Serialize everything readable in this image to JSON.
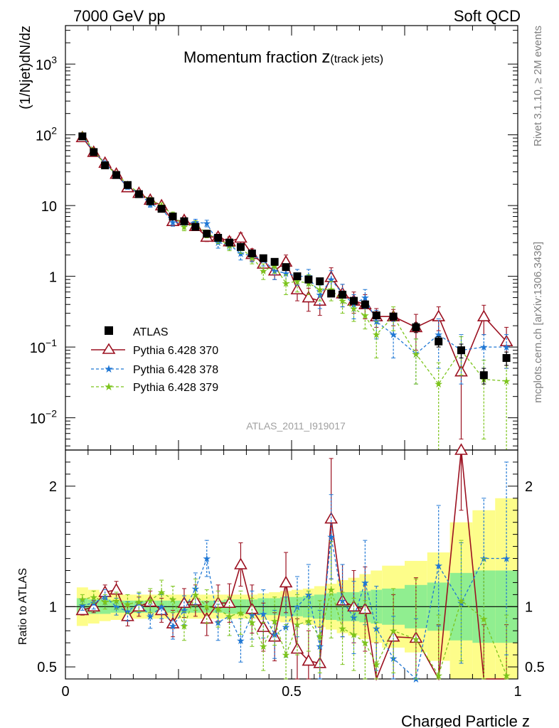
{
  "header": {
    "left": "7000 GeV pp",
    "right": "Soft QCD"
  },
  "side_labels": {
    "top": "Rivet 3.1.10, ≥ 2M events",
    "bottom": "mcplots.cern.ch [arXiv:1306.3436]"
  },
  "analysis_tag": "ATLAS_2011_I919017",
  "colors": {
    "data": "#000000",
    "p370": "#9b1020",
    "p378": "#1f77d4",
    "p379": "#7cc41c",
    "band_inner": "#90ee90",
    "band_outer": "#fdfd8a"
  },
  "chart_data": [
    {
      "type": "scatter",
      "panel": "main",
      "title_main": "Momentum fraction ",
      "title_z": "z",
      "title_sub": "(track jets)",
      "ylabel": "(1/Njet)dN/dz",
      "xlim": [
        0,
        1
      ],
      "ylim": [
        0.0035,
        3500
      ],
      "log_y": true,
      "y_ticks": [
        {
          "v": 0.01,
          "base": "10",
          "exp": "−2"
        },
        {
          "v": 0.1,
          "base": "10",
          "exp": "−1"
        },
        {
          "v": 1,
          "base": "1",
          "exp": ""
        },
        {
          "v": 10,
          "base": "10",
          "exp": ""
        },
        {
          "v": 100,
          "base": "10",
          "exp": "2"
        },
        {
          "v": 1000,
          "base": "10",
          "exp": "3"
        }
      ],
      "legend_position": "lower-left",
      "x": [
        0.0375,
        0.0625,
        0.0875,
        0.1125,
        0.1375,
        0.1625,
        0.1875,
        0.2125,
        0.2375,
        0.2625,
        0.2875,
        0.3125,
        0.3375,
        0.3625,
        0.3875,
        0.4125,
        0.4375,
        0.4625,
        0.4875,
        0.5125,
        0.5375,
        0.5625,
        0.5875,
        0.6125,
        0.6375,
        0.6625,
        0.6875,
        0.725,
        0.775,
        0.825,
        0.875,
        0.925,
        0.975
      ],
      "series": [
        {
          "name": "ATLAS",
          "key": "data",
          "marker": "square",
          "line": "none",
          "values": [
            95,
            57,
            37,
            27,
            19.5,
            14.5,
            11.5,
            9,
            7,
            6,
            5,
            4,
            3.5,
            3,
            2.6,
            2.1,
            1.8,
            1.6,
            1.35,
            1.0,
            0.9,
            0.85,
            0.57,
            0.55,
            0.45,
            0.4,
            0.28,
            0.27,
            0.19,
            0.12,
            0.09,
            0.04,
            0.07
          ],
          "errors": [
            5,
            3,
            2,
            1.5,
            1,
            0.8,
            0.6,
            0.5,
            0.4,
            0.35,
            0.3,
            0.25,
            0.2,
            0.18,
            0.16,
            0.13,
            0.12,
            0.11,
            0.1,
            0.08,
            0.07,
            0.07,
            0.05,
            0.05,
            0.04,
            0.04,
            0.03,
            0.03,
            0.03,
            0.02,
            0.02,
            0.01,
            0.015
          ]
        },
        {
          "name": "Pythia 6.428 370",
          "key": "p370",
          "marker": "triangle-open",
          "line": "solid",
          "values": [
            92,
            57,
            40,
            28,
            18,
            15,
            12,
            10,
            6,
            6.2,
            5.1,
            3.6,
            3.6,
            3.1,
            3.5,
            2.05,
            1.5,
            1.2,
            1.6,
            0.65,
            0.5,
            0.45,
            0.97,
            0.57,
            0.45,
            0.4,
            0.27,
            0.27,
            0.19,
            0.27,
            0.045,
            0.27,
            0.12
          ],
          "errors": [
            4,
            3,
            2,
            1.5,
            1.5,
            1.2,
            1,
            0.9,
            0.7,
            0.7,
            0.6,
            0.5,
            0.5,
            0.5,
            0.6,
            0.4,
            0.35,
            0.3,
            0.4,
            0.2,
            0.18,
            0.17,
            0.35,
            0.2,
            0.15,
            0.15,
            0.08,
            0.07,
            0.1,
            0.1,
            0.04,
            0.12,
            0.07
          ]
        },
        {
          "name": "Pythia 6.428 378",
          "key": "p378",
          "marker": "star",
          "line": "dashed",
          "values": [
            96,
            58,
            40,
            27,
            18.5,
            15,
            10.5,
            9,
            5.8,
            5.7,
            5.8,
            5.6,
            3.0,
            2.8,
            2.1,
            1.95,
            1.7,
            1.2,
            1.1,
            1.0,
            1.0,
            0.55,
            0.9,
            0.57,
            0.4,
            0.5,
            0.23,
            0.15,
            0.08,
            0.15,
            0.09,
            0.1,
            0.1
          ],
          "errors": [
            4,
            3,
            2,
            1.5,
            1.5,
            1.2,
            1,
            0.9,
            0.7,
            0.7,
            0.6,
            0.6,
            0.5,
            0.4,
            0.4,
            0.35,
            0.3,
            0.3,
            0.3,
            0.25,
            0.25,
            0.2,
            0.3,
            0.2,
            0.15,
            0.15,
            0.1,
            0.08,
            0.05,
            0.1,
            0.06,
            0.05,
            0.05
          ]
        },
        {
          "name": "Pythia 6.428 379",
          "key": "p379",
          "marker": "star",
          "line": "dashed",
          "values": [
            102,
            60,
            38,
            28,
            20,
            15,
            12,
            10,
            7.4,
            5,
            5.5,
            4,
            3.4,
            2.7,
            2.5,
            1.85,
            1.2,
            1.4,
            0.8,
            0.85,
            0.8,
            0.65,
            0.65,
            0.45,
            0.35,
            0.28,
            0.15,
            0.27,
            0.08,
            0.03,
            0.09,
            0.035,
            0.033
          ],
          "errors": [
            4,
            3,
            2,
            1.5,
            1.5,
            1.2,
            1,
            0.9,
            0.7,
            0.6,
            0.6,
            0.5,
            0.5,
            0.4,
            0.4,
            0.35,
            0.3,
            0.3,
            0.25,
            0.25,
            0.25,
            0.2,
            0.2,
            0.15,
            0.12,
            0.1,
            0.08,
            0.1,
            0.05,
            0.03,
            0.05,
            0.03,
            0.03
          ]
        }
      ]
    },
    {
      "type": "scatter",
      "panel": "ratio",
      "ylabel": "Ratio to ATLAS",
      "xlabel": "Charged Particle z",
      "xlim": [
        0,
        1
      ],
      "ylim": [
        0.4,
        2.3
      ],
      "x_ticks": [
        {
          "v": 0,
          "label": "0"
        },
        {
          "v": 0.5,
          "label": "0.5"
        },
        {
          "v": 1,
          "label": "1"
        }
      ],
      "y_ticks": [
        {
          "v": 0.5,
          "label": "0.5"
        },
        {
          "v": 1,
          "label": "1"
        },
        {
          "v": 2,
          "label": "2"
        }
      ],
      "x": [
        0.0375,
        0.0625,
        0.0875,
        0.1125,
        0.1375,
        0.1625,
        0.1875,
        0.2125,
        0.2375,
        0.2625,
        0.2875,
        0.3125,
        0.3375,
        0.3625,
        0.3875,
        0.4125,
        0.4375,
        0.4625,
        0.4875,
        0.5125,
        0.5375,
        0.5625,
        0.5875,
        0.6125,
        0.6375,
        0.6625,
        0.6875,
        0.725,
        0.775,
        0.825,
        0.875,
        0.925,
        0.975
      ],
      "bin_edges": [
        0.025,
        0.05,
        0.075,
        0.1,
        0.125,
        0.15,
        0.175,
        0.2,
        0.225,
        0.25,
        0.275,
        0.3,
        0.325,
        0.35,
        0.375,
        0.4,
        0.425,
        0.45,
        0.475,
        0.5,
        0.525,
        0.55,
        0.575,
        0.6,
        0.625,
        0.65,
        0.675,
        0.7,
        0.75,
        0.8,
        0.85,
        0.9,
        0.95,
        1.0
      ],
      "band_inner": [
        0.07,
        0.06,
        0.06,
        0.05,
        0.05,
        0.05,
        0.05,
        0.05,
        0.05,
        0.05,
        0.05,
        0.05,
        0.05,
        0.06,
        0.06,
        0.06,
        0.07,
        0.07,
        0.08,
        0.08,
        0.09,
        0.1,
        0.11,
        0.12,
        0.12,
        0.13,
        0.14,
        0.15,
        0.18,
        0.2,
        0.28,
        0.3,
        0.3
      ],
      "band_outer": [
        0.16,
        0.14,
        0.12,
        0.11,
        0.1,
        0.1,
        0.1,
        0.1,
        0.1,
        0.1,
        0.1,
        0.1,
        0.1,
        0.1,
        0.1,
        0.1,
        0.11,
        0.12,
        0.13,
        0.14,
        0.15,
        0.17,
        0.19,
        0.22,
        0.24,
        0.27,
        0.3,
        0.34,
        0.38,
        0.45,
        0.7,
        0.8,
        0.9
      ],
      "series": [
        {
          "name": "Pythia 6.428 370",
          "key": "p370",
          "marker": "triangle-open",
          "line": "solid",
          "values": [
            0.97,
            1.0,
            1.12,
            1.14,
            0.92,
            1.0,
            1.04,
            0.97,
            0.86,
            1.03,
            1.05,
            0.9,
            1.03,
            1.03,
            1.35,
            0.98,
            0.83,
            0.75,
            1.2,
            0.65,
            0.55,
            0.53,
            1.73,
            1.05,
            1.0,
            0.98,
            0.35,
            0.75,
            0.74,
            0.35,
            2.3,
            0.35,
            0.35
          ],
          "errors": [
            0.04,
            0.05,
            0.06,
            0.07,
            0.08,
            0.08,
            0.09,
            0.1,
            0.11,
            0.12,
            0.13,
            0.14,
            0.15,
            0.16,
            0.18,
            0.2,
            0.2,
            0.2,
            0.25,
            0.25,
            0.25,
            0.3,
            0.5,
            0.3,
            0.3,
            0.35,
            0.35,
            0.35,
            0.5,
            0.5,
            0.5,
            0.5,
            0.5
          ]
        },
        {
          "name": "Pythia 6.428 378",
          "key": "p378",
          "marker": "star",
          "line": "dashed",
          "values": [
            1.01,
            1.03,
            1.08,
            1.0,
            0.96,
            1.03,
            0.92,
            1.0,
            0.84,
            0.97,
            1.15,
            1.4,
            0.87,
            0.92,
            0.72,
            0.93,
            0.94,
            0.77,
            0.83,
            1.0,
            1.1,
            0.67,
            1.58,
            1.05,
            0.91,
            1.2,
            0.82,
            0.57,
            0.4,
            1.34,
            1.03,
            1.4,
            1.4
          ],
          "errors": [
            0.04,
            0.05,
            0.06,
            0.07,
            0.08,
            0.08,
            0.1,
            0.1,
            0.11,
            0.12,
            0.13,
            0.15,
            0.15,
            0.16,
            0.18,
            0.2,
            0.2,
            0.2,
            0.25,
            0.25,
            0.25,
            0.3,
            0.35,
            0.3,
            0.3,
            0.35,
            0.35,
            0.35,
            0.5,
            0.5,
            0.5,
            0.5,
            0.8
          ]
        },
        {
          "name": "Pythia 6.428 379",
          "key": "p379",
          "marker": "star",
          "line": "dashed",
          "values": [
            1.06,
            1.08,
            1.04,
            1.05,
            1.02,
            1.04,
            1.05,
            1.12,
            1.06,
            0.84,
            1.1,
            1.0,
            0.98,
            0.92,
            0.95,
            0.87,
            0.67,
            0.88,
            0.6,
            0.85,
            0.88,
            0.75,
            1.14,
            0.82,
            0.77,
            0.7,
            0.52,
            0.8,
            0.73,
            0.43,
            1.05,
            0.9,
            0.43
          ],
          "errors": [
            0.04,
            0.05,
            0.06,
            0.07,
            0.08,
            0.08,
            0.1,
            0.1,
            0.11,
            0.12,
            0.13,
            0.14,
            0.15,
            0.16,
            0.18,
            0.2,
            0.2,
            0.2,
            0.25,
            0.25,
            0.25,
            0.3,
            0.4,
            0.3,
            0.3,
            0.35,
            0.35,
            0.35,
            0.5,
            0.5,
            0.5,
            0.5,
            0.5
          ]
        }
      ]
    }
  ]
}
